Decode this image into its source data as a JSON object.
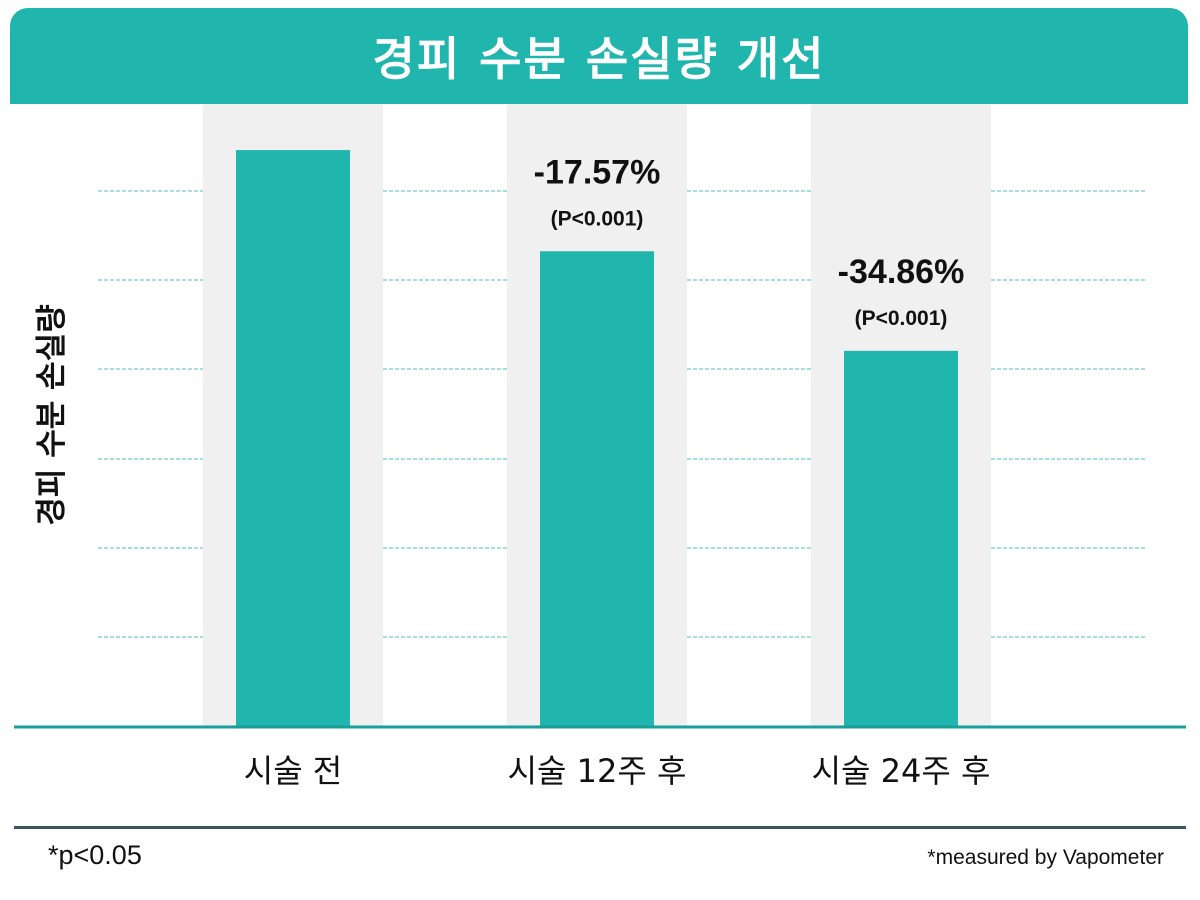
{
  "colors": {
    "accent": "#20b5ad",
    "column_bg": "#f0f0f0",
    "grid": "#4dbcc4",
    "axis": "#1a9e98",
    "text": "#111111",
    "rule": "#3e5560"
  },
  "chart_data": {
    "type": "bar",
    "title": "경피 수분 손실량 개선",
    "ylabel": "경피 수분 손실량",
    "xlabel": "",
    "categories": [
      "시술 전",
      "시술 12주 후",
      "시술 24주 후"
    ],
    "values": [
      100,
      82.43,
      65.14
    ],
    "ylim": [
      0,
      108
    ],
    "grid": true,
    "annotations": [
      {
        "category": "시술 12주 후",
        "change": "-17.57%",
        "pvalue": "(P<0.001)"
      },
      {
        "category": "시술 24주 후",
        "change": "-34.86%",
        "pvalue": "(P<0.001)"
      }
    ]
  },
  "footnotes": {
    "left": "*p<0.05",
    "right": "*measured by Vapometer"
  }
}
